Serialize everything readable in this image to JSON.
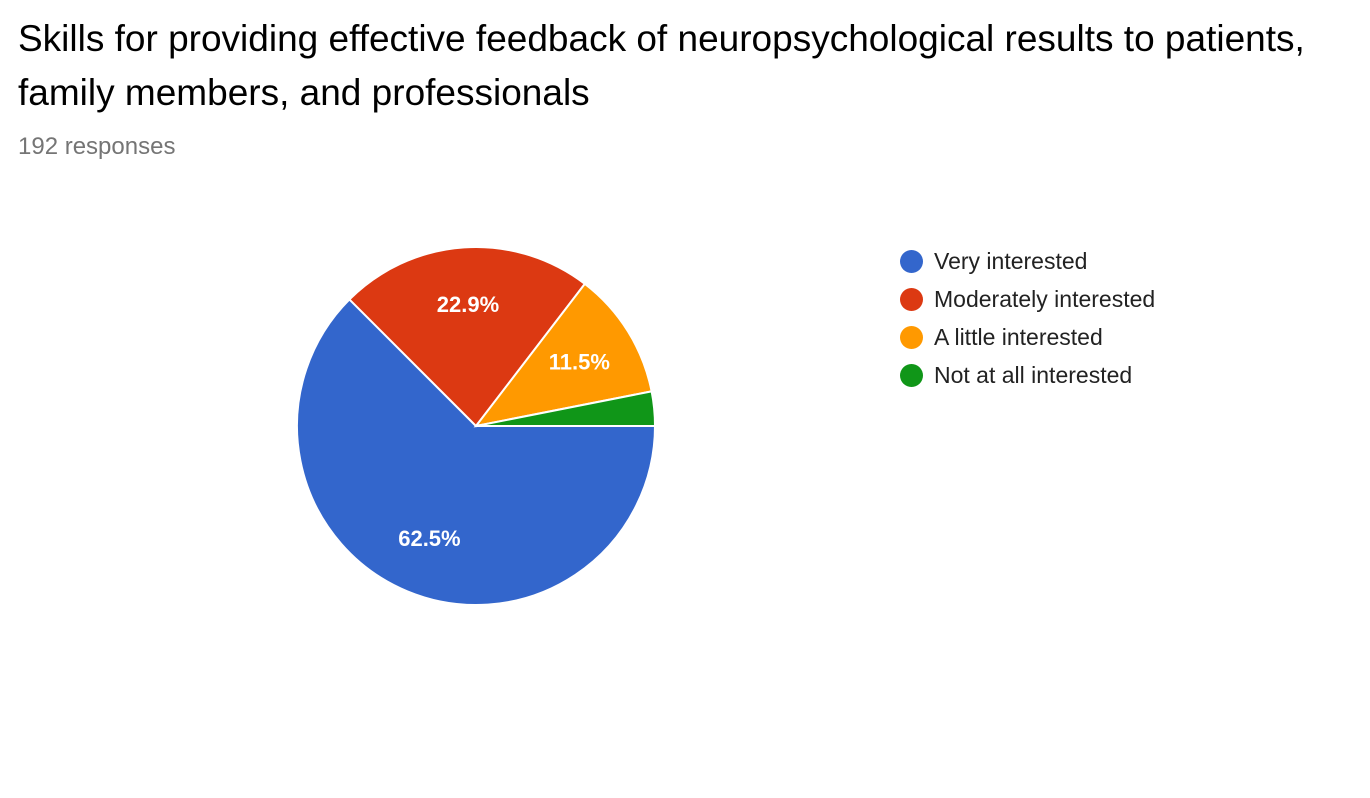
{
  "header": {
    "title": "Skills for providing effective feedback of neuropsychological results to patients, family members, and professionals",
    "responses": "192 responses"
  },
  "chart_data": {
    "type": "pie",
    "title": "Skills for providing effective feedback of neuropsychological results to patients, family members, and professionals",
    "total_responses": 192,
    "categories": [
      "Very interested",
      "Moderately interested",
      "A little interested",
      "Not at all interested"
    ],
    "values": [
      62.5,
      22.9,
      11.5,
      3.1
    ],
    "slice_labels": [
      "62.5%",
      "22.9%",
      "11.5%",
      ""
    ],
    "colors": [
      "#3366cc",
      "#dc3912",
      "#ff9900",
      "#109618"
    ],
    "legend_position": "right",
    "start_angle": "3 o'clock, counter-clockwise order ends with Very interested going clockwise"
  }
}
